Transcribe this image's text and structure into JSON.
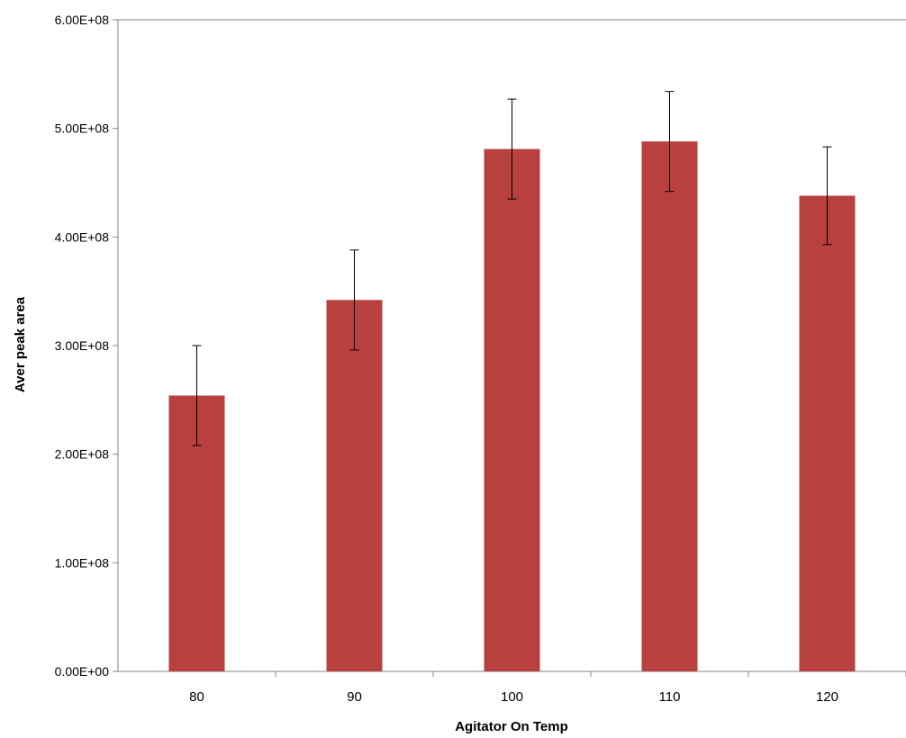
{
  "chart_data": {
    "type": "bar",
    "xlabel": "Agitator On Temp",
    "ylabel": "Aver peak area",
    "categories": [
      "80",
      "90",
      "100",
      "110",
      "120"
    ],
    "values": [
      254000000,
      342000000,
      481000000,
      488000000,
      438000000
    ],
    "errors": [
      46000000,
      46000000,
      46000000,
      46000000,
      45000000
    ],
    "ylim": [
      0,
      600000000
    ],
    "yticks": [
      0,
      100000000,
      200000000,
      300000000,
      400000000,
      500000000,
      600000000
    ],
    "ytick_labels": [
      "0.00E+00",
      "1.00E+08",
      "2.00E+08",
      "3.00E+08",
      "4.00E+08",
      "5.00E+08",
      "6.00E+08"
    ],
    "grid": false,
    "legend": "none",
    "bar_color": "#b8403e"
  }
}
